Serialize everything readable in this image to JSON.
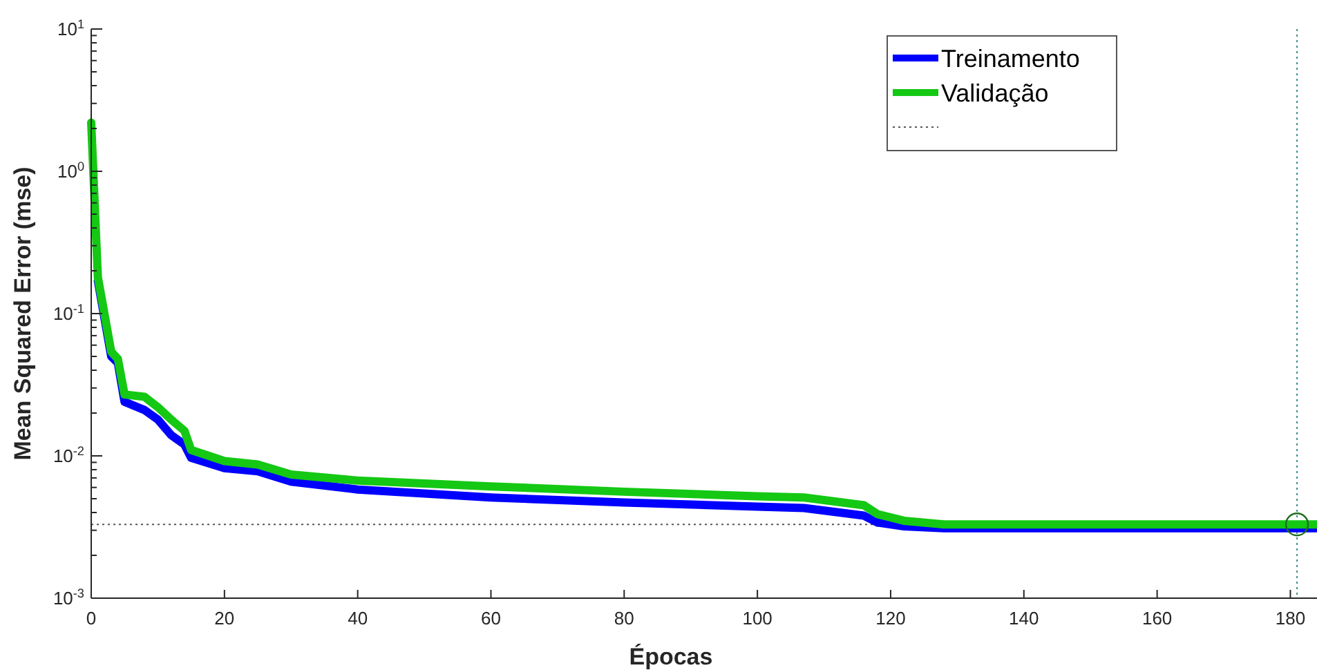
{
  "chart_data": {
    "type": "line",
    "xlabel": "Épocas",
    "ylabel": "Mean Squared Error (mse)",
    "log": "y",
    "legend": "top right",
    "grid": false,
    "line_style": "solid",
    "marker": "none",
    "xlim": [
      0,
      184
    ],
    "xticks": [
      0,
      20,
      40,
      60,
      80,
      100,
      120,
      140,
      160,
      180
    ],
    "ylim": [
      0.001,
      10
    ],
    "yticks": [
      {
        "value": 0.001,
        "label": "10$^{-3}$"
      },
      {
        "value": 0.002,
        "label": null
      },
      {
        "value": 0.003,
        "label": null
      },
      {
        "value": 0.004,
        "label": null
      },
      {
        "value": 0.005,
        "label": null
      },
      {
        "value": 0.006,
        "label": null
      },
      {
        "value": 0.007,
        "label": null
      },
      {
        "value": 0.008,
        "label": null
      },
      {
        "value": 0.009,
        "label": null
      },
      {
        "value": 0.01,
        "label": "10$^{-2}$"
      },
      {
        "value": 0.02,
        "label": null
      },
      {
        "value": 0.03,
        "label": null
      },
      {
        "value": 0.04,
        "label": null
      },
      {
        "value": 0.05,
        "label": null
      },
      {
        "value": 0.06,
        "label": null
      },
      {
        "value": 0.07,
        "label": null
      },
      {
        "value": 0.08,
        "label": null
      },
      {
        "value": 0.09,
        "label": null
      },
      {
        "value": 0.1,
        "label": "10$^{-1}$"
      },
      {
        "value": 0.2,
        "label": null
      },
      {
        "value": 0.3,
        "label": null
      },
      {
        "value": 0.4,
        "label": null
      },
      {
        "value": 0.5,
        "label": null
      },
      {
        "value": 0.6,
        "label": null
      },
      {
        "value": 0.7,
        "label": null
      },
      {
        "value": 0.8,
        "label": null
      },
      {
        "value": 0.9,
        "label": null
      },
      {
        "value": 1,
        "label": "10$^{0}$"
      },
      {
        "value": 2,
        "label": null
      },
      {
        "value": 3,
        "label": null
      },
      {
        "value": 4,
        "label": null
      },
      {
        "value": 5,
        "label": null
      },
      {
        "value": 6,
        "label": null
      },
      {
        "value": 7,
        "label": null
      },
      {
        "value": 8,
        "label": null
      },
      {
        "value": 9,
        "label": null
      },
      {
        "value": 10,
        "label": "10$^{1}$"
      }
    ],
    "x": [
      0,
      1,
      3,
      4,
      5,
      8,
      10,
      12,
      14,
      15,
      20,
      25,
      30,
      40,
      60,
      80,
      100,
      107,
      116,
      118,
      122,
      128,
      184
    ],
    "series": [
      {
        "name": "Treinamento",
        "color": "#0000ff",
        "values": [
          null,
          0.17,
          0.05,
          0.045,
          0.024,
          0.021,
          0.018,
          0.014,
          0.012,
          0.0097,
          0.0082,
          0.0078,
          0.0066,
          0.0058,
          0.0051,
          0.0047,
          0.0044,
          0.0043,
          0.0038,
          0.0034,
          0.0032,
          0.0031,
          0.0031
        ]
      },
      {
        "name": "Validação",
        "color": "#14c814",
        "values": [
          2.2,
          0.18,
          0.054,
          0.048,
          0.027,
          0.026,
          0.022,
          0.018,
          0.015,
          0.011,
          0.0092,
          0.0087,
          0.0074,
          0.0067,
          0.0061,
          0.0056,
          0.0052,
          0.0051,
          0.0045,
          0.0039,
          0.0035,
          0.0033,
          0.0033
        ]
      },
      {
        "type": "scatter",
        "marker": "circle",
        "color": "#1e6e1e",
        "x": [
          181
        ],
        "values": [
          0.0033
        ]
      }
    ],
    "ref_lines": [
      {
        "axis": "y",
        "value": 0.0033,
        "label": null,
        "color": "#555555",
        "line_style": "dotted"
      },
      {
        "axis": "x",
        "value": 181,
        "label": null,
        "color": "#3c8c8c",
        "line_style": "dotted"
      }
    ]
  }
}
